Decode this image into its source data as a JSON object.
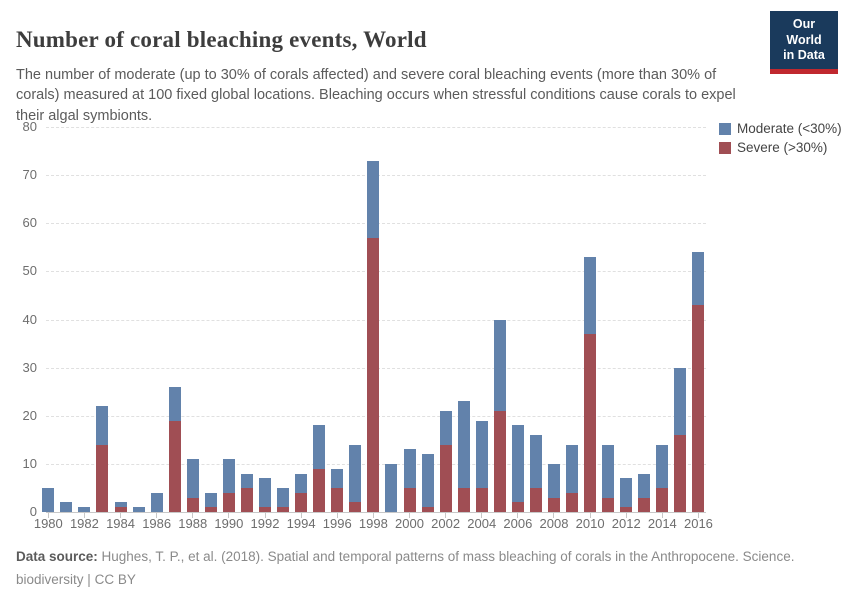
{
  "page": {
    "title": "Number of coral bleaching events, World",
    "subtitle": "The number of moderate (up to 30% of corals affected) and severe coral bleaching events (more than 30% of corals) measured at 100 fixed global locations. Bleaching occurs when stressful conditions cause corals to expel their algal symbionts."
  },
  "logo": {
    "line1": "Our World",
    "line2": "in Data",
    "bg_color": "#1a3a5c",
    "accent_color": "#c0282e"
  },
  "chart_data": {
    "type": "bar",
    "stacked": true,
    "title": "Number of coral bleaching events, World",
    "xlabel": "",
    "ylabel": "",
    "ylim": [
      0,
      80
    ],
    "yticks": [
      0,
      10,
      20,
      30,
      40,
      50,
      60,
      70,
      80
    ],
    "xtick_label_step": 2,
    "grid": "horizontal-dashed",
    "legend_position": "top-right",
    "categories": [
      "1980",
      "1981",
      "1982",
      "1983",
      "1984",
      "1985",
      "1986",
      "1987",
      "1988",
      "1989",
      "1990",
      "1991",
      "1992",
      "1993",
      "1994",
      "1995",
      "1996",
      "1997",
      "1998",
      "1999",
      "2000",
      "2001",
      "2002",
      "2003",
      "2004",
      "2005",
      "2006",
      "2007",
      "2008",
      "2009",
      "2010",
      "2011",
      "2012",
      "2013",
      "2014",
      "2015",
      "2016"
    ],
    "series": [
      {
        "name": "Moderate (<30%)",
        "color": "#6282ab",
        "values": [
          5,
          2,
          1,
          8,
          1,
          1,
          4,
          7,
          8,
          3,
          7,
          3,
          6,
          4,
          4,
          9,
          4,
          12,
          16,
          10,
          8,
          11,
          7,
          18,
          14,
          19,
          16,
          11,
          7,
          10,
          16,
          11,
          6,
          5,
          9,
          14,
          11
        ]
      },
      {
        "name": "Severe (>30%)",
        "color": "#a04e54",
        "values": [
          0,
          0,
          0,
          14,
          1,
          0,
          0,
          19,
          3,
          1,
          4,
          5,
          1,
          1,
          4,
          9,
          5,
          2,
          57,
          0,
          5,
          1,
          14,
          5,
          5,
          21,
          2,
          5,
          3,
          4,
          37,
          3,
          1,
          3,
          5,
          16,
          43
        ]
      }
    ],
    "totals": [
      5,
      2,
      1,
      22,
      2,
      1,
      4,
      26,
      11,
      4,
      11,
      8,
      7,
      5,
      8,
      18,
      9,
      14,
      73,
      10,
      13,
      12,
      21,
      23,
      19,
      40,
      18,
      16,
      10,
      14,
      53,
      14,
      7,
      8,
      14,
      30,
      54
    ]
  },
  "footer": {
    "source_label": "Data source:",
    "source_text": " Hughes, T. P., et al. (2018). Spatial and temporal patterns of mass bleaching of corals in the Anthropocene. Science.",
    "topic": "biodiversity",
    "divider": "|",
    "license": "CC BY"
  }
}
